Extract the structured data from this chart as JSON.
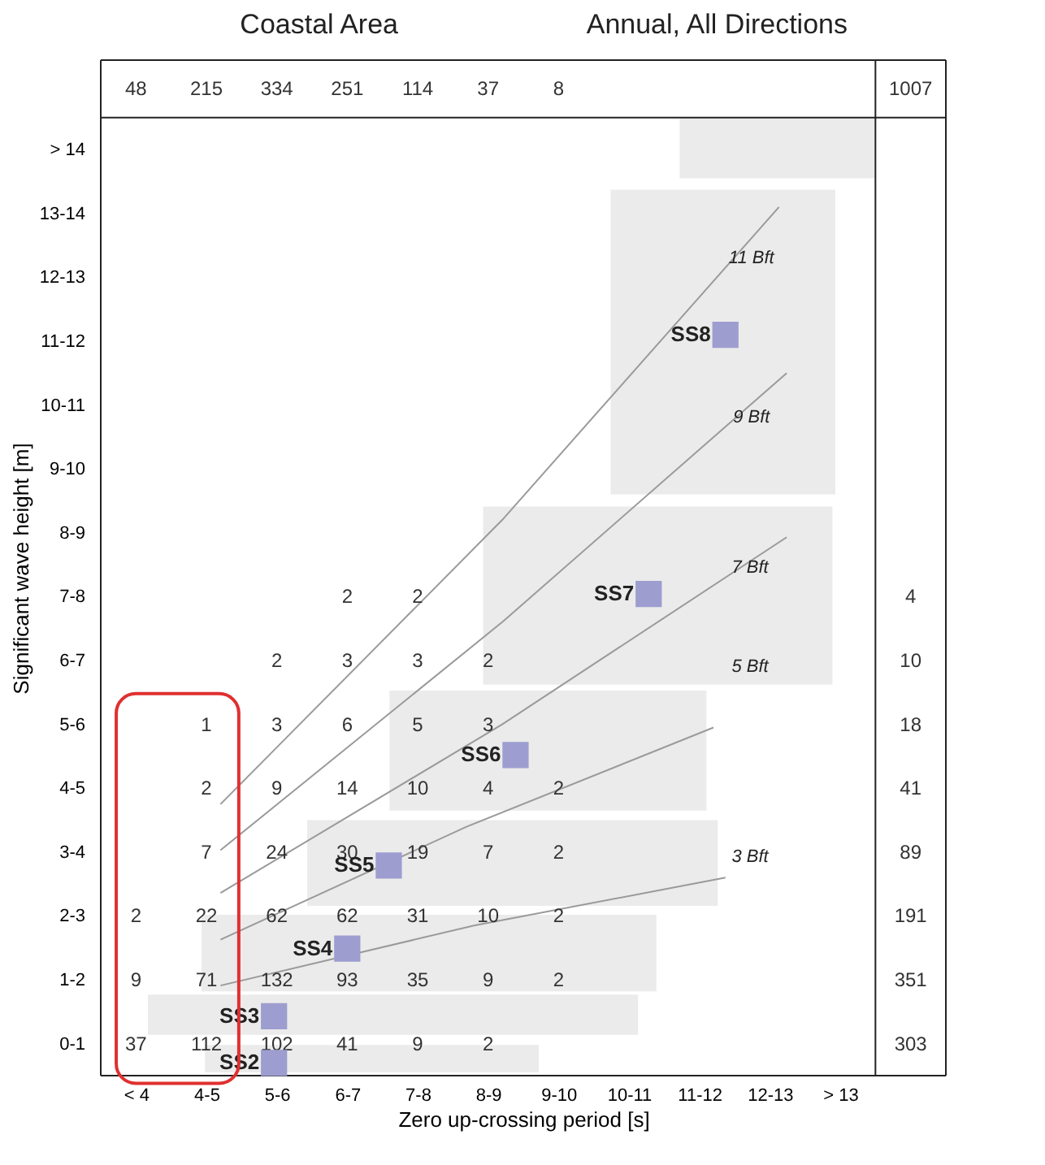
{
  "chart_data": {
    "type": "heatmap",
    "title": "Coastal Area",
    "subtitle": "Annual, All Directions",
    "xlabel": "Zero up-crossing period [s]",
    "ylabel": "Significant wave height [m]",
    "data_labels": true,
    "categories": [
      "< 4",
      "4-5",
      "5-6",
      "6-7",
      "7-8",
      "8-9",
      "9-10",
      "10-11",
      "11-12",
      "12-13",
      "> 13"
    ],
    "y_categories": [
      "> 14",
      "13-14",
      "12-13",
      "11-12",
      "10-11",
      "9-10",
      "8-9",
      "7-8",
      "6-7",
      "5-6",
      "4-5",
      "3-4",
      "2-3",
      "1-2",
      "0-1"
    ],
    "y2_categories": [
      null,
      null,
      null,
      null,
      null,
      null,
      null,
      "4",
      "10",
      "18",
      "41",
      "89",
      "191",
      "351",
      "303"
    ],
    "cells": [
      [
        null,
        null,
        null,
        null,
        null,
        null,
        null,
        null,
        null,
        null,
        null
      ],
      [
        null,
        null,
        null,
        null,
        null,
        null,
        null,
        null,
        null,
        null,
        null
      ],
      [
        null,
        null,
        null,
        null,
        null,
        null,
        null,
        null,
        null,
        null,
        null
      ],
      [
        null,
        null,
        null,
        null,
        null,
        null,
        null,
        null,
        null,
        null,
        null
      ],
      [
        null,
        null,
        null,
        null,
        null,
        null,
        null,
        null,
        null,
        null,
        null
      ],
      [
        null,
        null,
        null,
        null,
        null,
        null,
        null,
        null,
        null,
        null,
        null
      ],
      [
        null,
        null,
        null,
        null,
        null,
        null,
        null,
        null,
        null,
        null,
        null
      ],
      [
        null,
        null,
        null,
        2,
        2,
        null,
        null,
        null,
        null,
        null,
        null
      ],
      [
        null,
        null,
        2,
        3,
        3,
        2,
        null,
        null,
        null,
        null,
        null
      ],
      [
        null,
        1,
        3,
        6,
        5,
        3,
        null,
        null,
        null,
        null,
        null
      ],
      [
        null,
        2,
        9,
        14,
        10,
        4,
        2,
        null,
        null,
        null,
        null
      ],
      [
        null,
        7,
        24,
        30,
        19,
        7,
        2,
        null,
        null,
        null,
        null
      ],
      [
        2,
        22,
        62,
        62,
        31,
        10,
        2,
        null,
        null,
        null,
        null
      ],
      [
        9,
        71,
        132,
        93,
        35,
        9,
        2,
        null,
        null,
        null,
        null
      ],
      [
        37,
        112,
        102,
        41,
        9,
        2,
        null,
        null,
        null,
        null,
        null
      ]
    ],
    "annotations": [
      "48",
      "215",
      "334",
      "251",
      "114",
      "37",
      "8",
      "1007",
      "SS2",
      "SS3",
      "SS4",
      "SS5",
      "SS6",
      "SS7",
      "SS8",
      "3 Bft",
      "5 Bft",
      "7 Bft",
      "9 Bft",
      "11 Bft"
    ]
  }
}
